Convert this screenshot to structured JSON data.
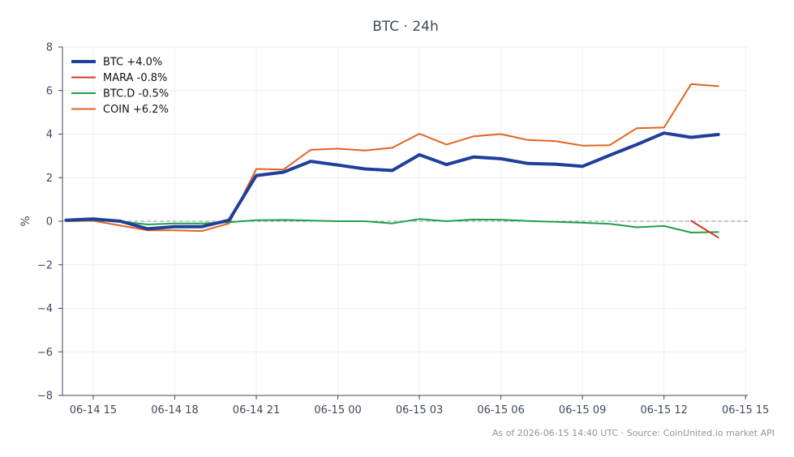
{
  "chart_data": {
    "type": "line",
    "title": "BTC · 24h",
    "ylabel": "%",
    "xlabel": "",
    "ylim": [
      -8,
      8
    ],
    "yticks": [
      8,
      6,
      4,
      2,
      0,
      -2,
      -4,
      -6,
      -8
    ],
    "ytick_labels": [
      "8",
      "6",
      "4",
      "2",
      "0",
      "−2",
      "−4",
      "−6",
      "−8"
    ],
    "xlim": [
      "06-14 13:52",
      "06-15 15:05"
    ],
    "xticks": [
      "06-14 15",
      "06-14 18",
      "06-14 21",
      "06-15 00",
      "06-15 03",
      "06-15 06",
      "06-15 09",
      "06-15 12",
      "06-15 15"
    ],
    "grid": true,
    "baseline": 0,
    "legend_position": "top-left",
    "footer": "As of 2026-06-15 14:40 UTC · Source: CoinUnited.io market API",
    "x": [
      "06-14 14",
      "06-14 15",
      "06-14 16",
      "06-14 17",
      "06-14 18",
      "06-14 19",
      "06-14 20",
      "06-14 21",
      "06-14 22",
      "06-14 23",
      "06-15 00",
      "06-15 01",
      "06-15 02",
      "06-15 03",
      "06-15 04",
      "06-15 05",
      "06-15 06",
      "06-15 07",
      "06-15 08",
      "06-15 09",
      "06-15 10",
      "06-15 11",
      "06-15 12",
      "06-15 13",
      "06-15 14"
    ],
    "series": [
      {
        "name": "BTC +4.0%",
        "color": "#1f3f9c",
        "width": 4,
        "values": [
          0.05,
          0.1,
          0.0,
          -0.35,
          -0.25,
          -0.25,
          0.05,
          2.1,
          2.25,
          2.75,
          2.58,
          2.4,
          2.33,
          3.05,
          2.6,
          2.95,
          2.87,
          2.65,
          2.62,
          2.52,
          3.03,
          3.52,
          4.05,
          3.85,
          3.98
        ]
      },
      {
        "name": "MARA -0.8%",
        "color": "#d63527",
        "width": 2,
        "values": [
          null,
          null,
          null,
          null,
          null,
          null,
          null,
          null,
          null,
          null,
          null,
          null,
          null,
          null,
          null,
          null,
          null,
          null,
          null,
          null,
          null,
          null,
          null,
          0.02,
          -0.75
        ]
      },
      {
        "name": "BTC.D -0.5%",
        "color": "#21a046",
        "width": 2,
        "values": [
          0.02,
          0.05,
          -0.02,
          -0.15,
          -0.1,
          -0.1,
          -0.05,
          0.05,
          0.06,
          0.03,
          0.0,
          0.0,
          -0.1,
          0.1,
          0.0,
          0.08,
          0.07,
          0.01,
          -0.03,
          -0.07,
          -0.12,
          -0.28,
          -0.22,
          -0.52,
          -0.5
        ]
      },
      {
        "name": "COIN +6.2%",
        "color": "#e06420",
        "width": 2,
        "values": [
          0.0,
          0.02,
          -0.2,
          -0.42,
          -0.42,
          -0.45,
          -0.1,
          2.4,
          2.37,
          3.28,
          3.33,
          3.25,
          3.37,
          4.02,
          3.52,
          3.9,
          4.0,
          3.73,
          3.68,
          3.47,
          3.49,
          4.27,
          4.3,
          6.3,
          6.2
        ]
      }
    ]
  }
}
